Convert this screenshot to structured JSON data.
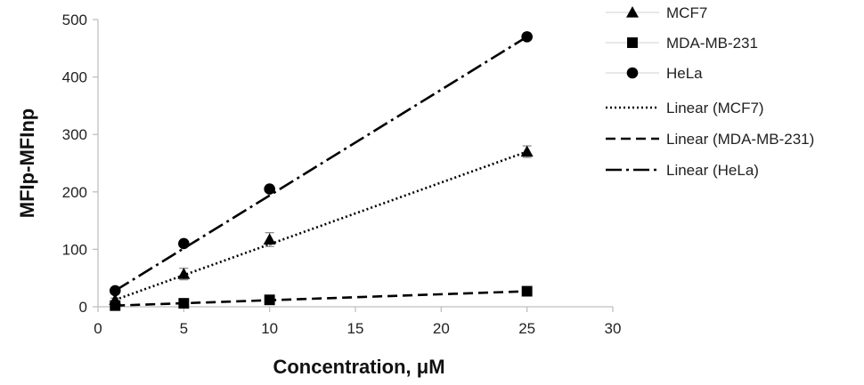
{
  "chart_data": {
    "type": "scatter",
    "xlabel": "Concentration, μM",
    "ylabel": "MFIp-MFInp",
    "xlim": [
      0,
      30
    ],
    "ylim": [
      0,
      500
    ],
    "x_ticks": [
      0,
      5,
      10,
      15,
      20,
      25,
      30
    ],
    "y_ticks": [
      0,
      100,
      200,
      300,
      400,
      500
    ],
    "grid": false,
    "legend_position": "right",
    "series": [
      {
        "name": "MCF7",
        "marker": "triangle",
        "x": [
          1,
          5,
          10,
          25
        ],
        "y": [
          12,
          57,
          117,
          270
        ],
        "error": [
          3,
          10,
          12,
          10
        ],
        "trendline": {
          "name": "Linear (MCF7)",
          "style": "dotted",
          "x": [
            1,
            25
          ],
          "y": [
            12,
            270
          ]
        }
      },
      {
        "name": "MDA-MB-231",
        "marker": "square",
        "x": [
          1,
          5,
          10,
          25
        ],
        "y": [
          2,
          6,
          12,
          27
        ],
        "error": [
          1,
          1,
          2,
          2
        ],
        "trendline": {
          "name": "Linear (MDA-MB-231)",
          "style": "dashed",
          "x": [
            1,
            25
          ],
          "y": [
            2,
            27
          ]
        }
      },
      {
        "name": "HeLa",
        "marker": "circle",
        "x": [
          1,
          5,
          10,
          25
        ],
        "y": [
          28,
          110,
          205,
          470
        ],
        "error": [
          2,
          3,
          3,
          3
        ],
        "trendline": {
          "name": "Linear (HeLa)",
          "style": "dashdot",
          "x": [
            1,
            25
          ],
          "y": [
            28,
            470
          ]
        }
      }
    ]
  }
}
